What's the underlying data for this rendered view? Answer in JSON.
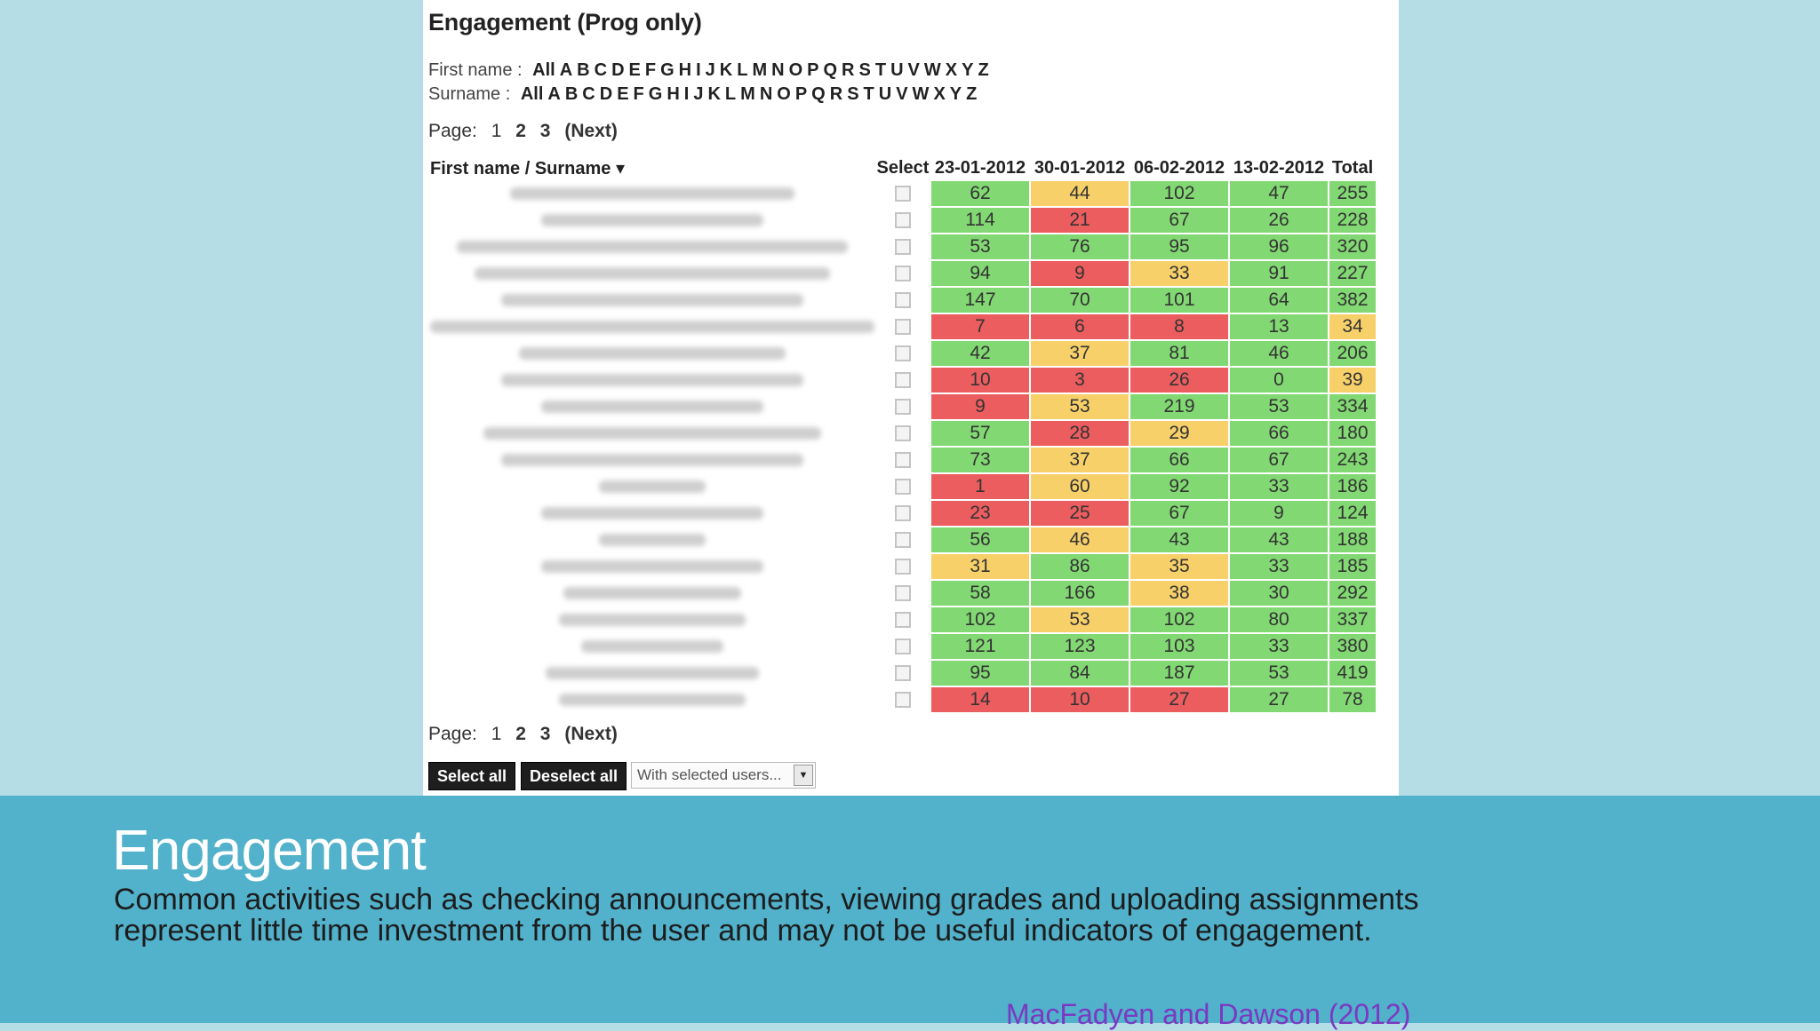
{
  "panel": {
    "title": "Engagement (Prog only)",
    "first_name_label": "First name :",
    "surname_label": "Surname :",
    "letters": [
      "All",
      "A",
      "B",
      "C",
      "D",
      "E",
      "F",
      "G",
      "H",
      "I",
      "J",
      "K",
      "L",
      "M",
      "N",
      "O",
      "P",
      "Q",
      "R",
      "S",
      "T",
      "U",
      "V",
      "W",
      "X",
      "Y",
      "Z"
    ],
    "pager": {
      "label": "Page:",
      "current": "1",
      "pages": [
        "2",
        "3"
      ],
      "next": "(Next)"
    },
    "headers": {
      "name": "First name / Surname ▾",
      "select": "Select",
      "dates": [
        "23-01-2012",
        "30-01-2012",
        "06-02-2012",
        "13-02-2012"
      ],
      "total": "Total"
    },
    "rows": [
      {
        "v": [
          "62",
          "44",
          "102",
          "47",
          "255"
        ],
        "c": [
          "g",
          "y",
          "g",
          "g",
          "g"
        ]
      },
      {
        "v": [
          "114",
          "21",
          "67",
          "26",
          "228"
        ],
        "c": [
          "g",
          "r",
          "g",
          "g",
          "g"
        ]
      },
      {
        "v": [
          "53",
          "76",
          "95",
          "96",
          "320"
        ],
        "c": [
          "g",
          "g",
          "g",
          "g",
          "g"
        ]
      },
      {
        "v": [
          "94",
          "9",
          "33",
          "91",
          "227"
        ],
        "c": [
          "g",
          "r",
          "y",
          "g",
          "g"
        ]
      },
      {
        "v": [
          "147",
          "70",
          "101",
          "64",
          "382"
        ],
        "c": [
          "g",
          "g",
          "g",
          "g",
          "g"
        ]
      },
      {
        "v": [
          "7",
          "6",
          "8",
          "13",
          "34"
        ],
        "c": [
          "r",
          "r",
          "r",
          "g",
          "y"
        ]
      },
      {
        "v": [
          "42",
          "37",
          "81",
          "46",
          "206"
        ],
        "c": [
          "g",
          "y",
          "g",
          "g",
          "g"
        ]
      },
      {
        "v": [
          "10",
          "3",
          "26",
          "0",
          "39"
        ],
        "c": [
          "r",
          "r",
          "r",
          "g",
          "y"
        ]
      },
      {
        "v": [
          "9",
          "53",
          "219",
          "53",
          "334"
        ],
        "c": [
          "r",
          "y",
          "g",
          "g",
          "g"
        ]
      },
      {
        "v": [
          "57",
          "28",
          "29",
          "66",
          "180"
        ],
        "c": [
          "g",
          "r",
          "y",
          "g",
          "g"
        ]
      },
      {
        "v": [
          "73",
          "37",
          "66",
          "67",
          "243"
        ],
        "c": [
          "g",
          "y",
          "g",
          "g",
          "g"
        ]
      },
      {
        "v": [
          "1",
          "60",
          "92",
          "33",
          "186"
        ],
        "c": [
          "r",
          "y",
          "g",
          "g",
          "g"
        ]
      },
      {
        "v": [
          "23",
          "25",
          "67",
          "9",
          "124"
        ],
        "c": [
          "r",
          "r",
          "g",
          "g",
          "g"
        ]
      },
      {
        "v": [
          "56",
          "46",
          "43",
          "43",
          "188"
        ],
        "c": [
          "g",
          "y",
          "g",
          "g",
          "g"
        ]
      },
      {
        "v": [
          "31",
          "86",
          "35",
          "33",
          "185"
        ],
        "c": [
          "y",
          "g",
          "y",
          "g",
          "g"
        ]
      },
      {
        "v": [
          "58",
          "166",
          "38",
          "30",
          "292"
        ],
        "c": [
          "g",
          "g",
          "y",
          "g",
          "g"
        ]
      },
      {
        "v": [
          "102",
          "53",
          "102",
          "80",
          "337"
        ],
        "c": [
          "g",
          "y",
          "g",
          "g",
          "g"
        ]
      },
      {
        "v": [
          "121",
          "123",
          "103",
          "33",
          "380"
        ],
        "c": [
          "g",
          "g",
          "g",
          "g",
          "g"
        ]
      },
      {
        "v": [
          "95",
          "84",
          "187",
          "53",
          "419"
        ],
        "c": [
          "g",
          "g",
          "g",
          "g",
          "g"
        ]
      },
      {
        "v": [
          "14",
          "10",
          "27",
          "27",
          "78"
        ],
        "c": [
          "r",
          "r",
          "r",
          "g",
          "g"
        ]
      }
    ],
    "buttons": {
      "select_all": "Select all",
      "deselect_all": "Deselect all"
    },
    "dropdown": {
      "value": "With selected users..."
    }
  },
  "colors": {
    "good": "#82d873",
    "medium": "#f7d06a",
    "low": "#ec5d5f"
  },
  "slide": {
    "title": "Engagement",
    "body": "Common activities such as checking announcements, viewing grades and uploading assignments represent little time investment from the user and may not be useful indicators of engagement.",
    "citation": "MacFadyen and Dawson (2012)"
  }
}
